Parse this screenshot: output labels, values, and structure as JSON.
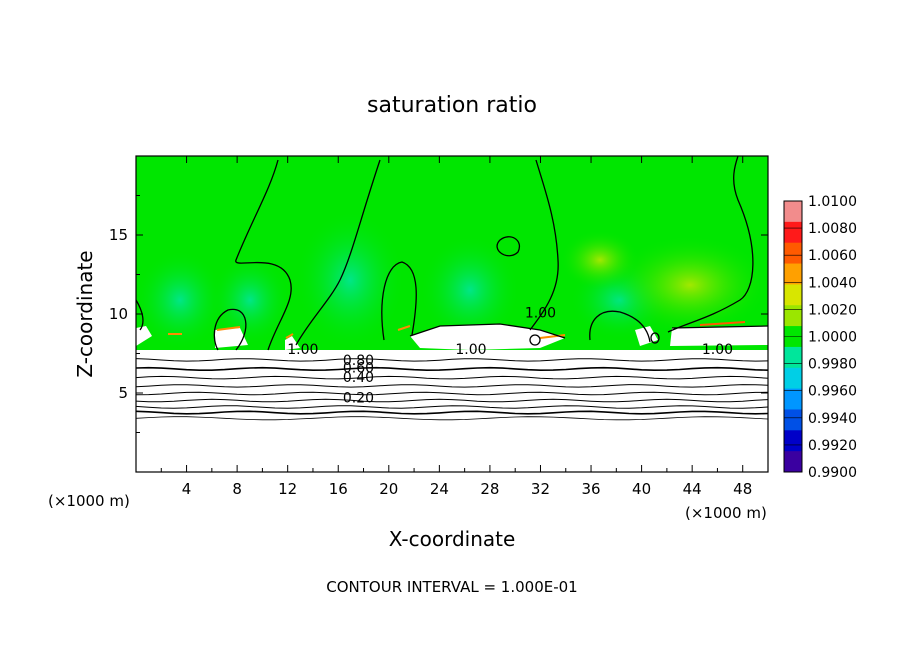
{
  "chart_data": {
    "type": "heatmap",
    "title": "saturation ratio",
    "xlabel": "X-coordinate",
    "ylabel": "Z-coordinate",
    "x_unit_label": "(×1000 m)",
    "x_unit_label_right": "(×1000 m)",
    "footer": "CONTOUR INTERVAL = 1.000E-01",
    "xlim": [
      0,
      50
    ],
    "ylim": [
      0,
      20
    ],
    "x_ticks": [
      4,
      8,
      12,
      16,
      20,
      24,
      28,
      32,
      36,
      40,
      44,
      48
    ],
    "y_ticks": [
      5,
      10,
      15
    ],
    "colorbar": {
      "min": 0.99,
      "max": 1.01,
      "labels": [
        "1.0100",
        "1.0080",
        "1.0060",
        "1.0040",
        "1.0020",
        "1.0000",
        "0.9980",
        "0.9960",
        "0.9940",
        "0.9920",
        "0.9900"
      ],
      "colors": [
        "#f28c8c",
        "#ff1a1a",
        "#ff5a00",
        "#ffa000",
        "#d8e600",
        "#9be600",
        "#00e600",
        "#00e69b",
        "#00cfe6",
        "#0096ff",
        "#0050e6",
        "#0000c8",
        "#3a00a0"
      ]
    },
    "contour_labels": [
      {
        "text": "1.00",
        "x": 13.2,
        "z": 7.8
      },
      {
        "text": "1.00",
        "x": 26.5,
        "z": 7.8
      },
      {
        "text": "1.00",
        "x": 32.0,
        "z": 10.1
      },
      {
        "text": "1.00",
        "x": 46.0,
        "z": 7.8
      },
      {
        "text": "0.80",
        "x": 17.6,
        "z": 7.1
      },
      {
        "text": "0.60",
        "x": 17.6,
        "z": 6.6
      },
      {
        "text": "0.40",
        "x": 17.6,
        "z": 6.0
      },
      {
        "text": "0.20",
        "x": 17.6,
        "z": 4.7
      }
    ],
    "layer_levels": [
      0.2,
      0.3,
      0.4,
      0.5,
      0.6,
      0.7,
      0.8,
      0.9
    ],
    "cloud_base_z": 7.7
  }
}
